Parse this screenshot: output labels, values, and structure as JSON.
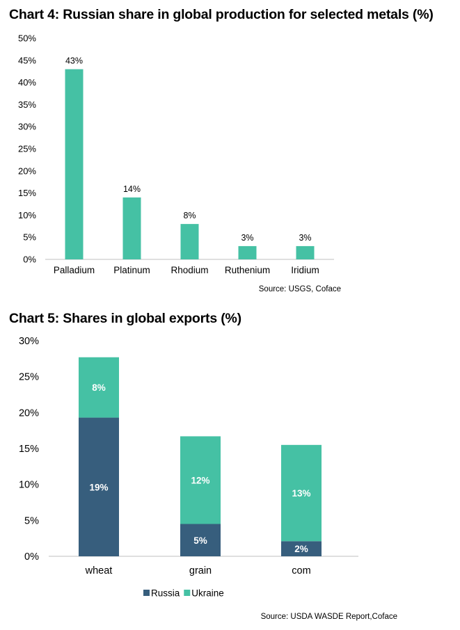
{
  "chart_data": [
    {
      "type": "bar",
      "title": "Chart 4: Russian share in global production for selected metals (%)",
      "categories": [
        "Palladium",
        "Platinum",
        "Rhodium",
        "Ruthenium",
        "Iridium"
      ],
      "values": [
        43,
        14,
        8,
        3,
        3
      ],
      "data_labels": [
        "43%",
        "14%",
        "8%",
        "3%",
        "3%"
      ],
      "yticks": [
        "0%",
        "5%",
        "10%",
        "15%",
        "20%",
        "25%",
        "30%",
        "35%",
        "40%",
        "45%",
        "50%"
      ],
      "ylim": [
        0,
        50
      ],
      "xlabel": "",
      "ylabel": "",
      "color": "#45c1a4",
      "source": "Source: USGS, Coface"
    },
    {
      "type": "bar",
      "stacked": true,
      "title": "Chart 5: Shares in global exports (%)",
      "categories": [
        "wheat",
        "grain",
        "com"
      ],
      "series": [
        {
          "name": "Russia",
          "values": [
            19.3,
            4.5,
            2.1
          ],
          "labels": [
            "19%",
            "5%",
            "2%"
          ],
          "color": "#375e7d"
        },
        {
          "name": "Ukraine",
          "values": [
            8.4,
            12.2,
            13.4
          ],
          "labels": [
            "8%",
            "12%",
            "13%"
          ],
          "color": "#45c1a4"
        }
      ],
      "yticks": [
        "0%",
        "5%",
        "10%",
        "15%",
        "20%",
        "25%",
        "30%"
      ],
      "ylim": [
        0,
        30
      ],
      "xlabel": "",
      "ylabel": "",
      "source": "Source: USDA WASDE Report,Coface"
    }
  ]
}
